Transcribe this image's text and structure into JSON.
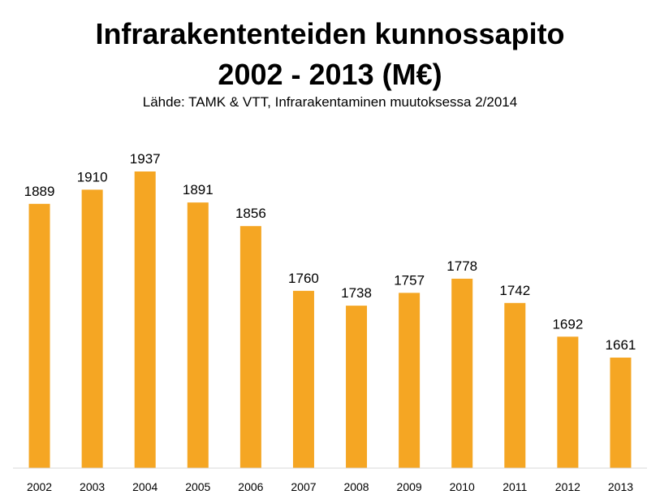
{
  "chart_data": {
    "type": "bar",
    "title": "Infrarakententeiden kunnossapito",
    "title_line2": "2002 - 2013 (M€)",
    "subtitle": "Lähde: TAMK & VTT, Infrarakentaminen muutoksessa 2/2014",
    "categories": [
      "2002",
      "2003",
      "2004",
      "2005",
      "2006",
      "2007",
      "2008",
      "2009",
      "2010",
      "2011",
      "2012",
      "2013"
    ],
    "values": [
      1889,
      1910,
      1937,
      1891,
      1856,
      1760,
      1738,
      1757,
      1778,
      1742,
      1692,
      1661
    ],
    "bar_color": "#F5A623",
    "axis_color": "#D9D9D9",
    "data_labels": true,
    "grid": false,
    "legend": "none"
  }
}
